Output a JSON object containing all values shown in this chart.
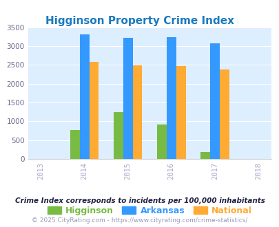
{
  "title": "Higginson Property Crime Index",
  "years": [
    "2013",
    "2014",
    "2015",
    "2016",
    "2017",
    "2018"
  ],
  "bar_years": [
    2014,
    2015,
    2016,
    2017
  ],
  "higginson": [
    775,
    1240,
    910,
    175
  ],
  "arkansas": [
    3310,
    3210,
    3240,
    3080
  ],
  "national": [
    2580,
    2490,
    2470,
    2370
  ],
  "higginson_color": "#77bb44",
  "arkansas_color": "#3399ff",
  "national_color": "#ffaa33",
  "background_color": "#ddeeff",
  "ylim": [
    0,
    3500
  ],
  "yticks": [
    0,
    500,
    1000,
    1500,
    2000,
    2500,
    3000,
    3500
  ],
  "legend_labels": [
    "Higginson",
    "Arkansas",
    "National"
  ],
  "legend_colors": [
    "#77bb44",
    "#3399ff",
    "#ffaa33"
  ],
  "footnote1": "Crime Index corresponds to incidents per 100,000 inhabitants",
  "footnote2": "© 2025 CityRating.com - https://www.cityrating.com/crime-statistics/",
  "title_color": "#1a7abf",
  "footnote1_color": "#222244",
  "footnote2_color": "#9999bb",
  "xtick_color": "#aaaacc",
  "ytick_color": "#666688"
}
